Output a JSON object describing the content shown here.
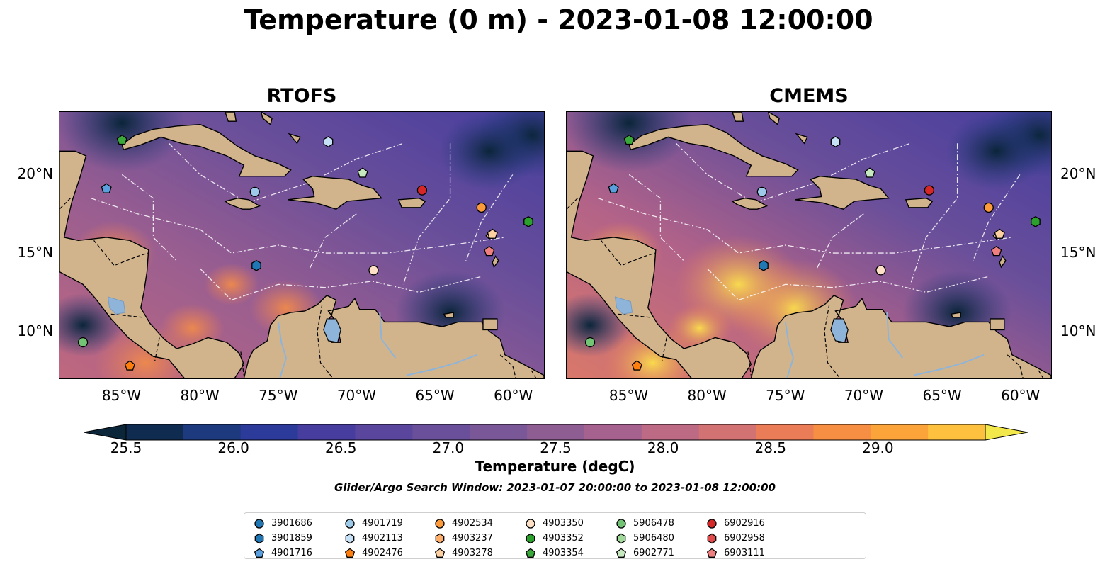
{
  "figure": {
    "title": "Temperature (0 m) - 2023-01-08 12:00:00",
    "panels": [
      {
        "title": "RTOFS"
      },
      {
        "title": "CMEMS"
      }
    ],
    "lat_ticks": [
      "20°N",
      "15°N",
      "10°N"
    ],
    "lon_ticks": [
      "85°W",
      "80°W",
      "75°W",
      "70°W",
      "65°W",
      "60°W"
    ],
    "extent": {
      "lon": [
        -89,
        -58
      ],
      "lat": [
        7,
        24
      ]
    },
    "colorbar": {
      "label": "Temperature (degC)",
      "ticks": [
        "25.5",
        "26.0",
        "26.5",
        "27.0",
        "27.5",
        "28.0",
        "28.5",
        "29.0"
      ],
      "range": [
        25.5,
        29.25
      ],
      "step": 0.25,
      "extend": "both",
      "colors": [
        "#0b2539",
        "#0f2b4f",
        "#1d3a7e",
        "#2c3a9a",
        "#463d9e",
        "#5a479d",
        "#6a4f9a",
        "#7a5897",
        "#8e5e93",
        "#a5628f",
        "#bd6a85",
        "#d27273",
        "#ea7d58",
        "#f68f43",
        "#fba43a",
        "#fdc13f",
        "#f2e84c"
      ]
    },
    "search_window": "Glider/Argo Search Window: 2023-01-07 20:00:00 to 2023-01-08 12:00:00",
    "colors": {
      "land": "#d2b48c",
      "ocean_base": "#5a4a9a",
      "rivers": "#8fb4d9"
    }
  },
  "legend": [
    {
      "id": "3901686",
      "marker": "circle",
      "color": "#1f77b4"
    },
    {
      "id": "3901859",
      "marker": "hexagon",
      "color": "#1f77b4"
    },
    {
      "id": "4901716",
      "marker": "pentagon",
      "color": "#5aa0de"
    },
    {
      "id": "4901719",
      "marker": "circle",
      "color": "#9ecae9"
    },
    {
      "id": "4902113",
      "marker": "hexagon",
      "color": "#c6e0f5"
    },
    {
      "id": "4902476",
      "marker": "pentagon",
      "color": "#ff7f0e"
    },
    {
      "id": "4902534",
      "marker": "circle",
      "color": "#fd9a3a"
    },
    {
      "id": "4903237",
      "marker": "hexagon",
      "color": "#fdae6b"
    },
    {
      "id": "4903278",
      "marker": "pentagon",
      "color": "#fdd0a2"
    },
    {
      "id": "4903350",
      "marker": "circle",
      "color": "#fde0c5"
    },
    {
      "id": "4903352",
      "marker": "hexagon",
      "color": "#2ca02c"
    },
    {
      "id": "4903354",
      "marker": "pentagon",
      "color": "#3aa83a"
    },
    {
      "id": "5906478",
      "marker": "circle",
      "color": "#74c476"
    },
    {
      "id": "5906480",
      "marker": "hexagon",
      "color": "#a1d99b"
    },
    {
      "id": "6902771",
      "marker": "pentagon",
      "color": "#c7e9c0"
    },
    {
      "id": "6902916",
      "marker": "circle",
      "color": "#d62728"
    },
    {
      "id": "6902958",
      "marker": "hexagon",
      "color": "#e04a4a"
    },
    {
      "id": "6903111",
      "marker": "pentagon",
      "color": "#f08080"
    }
  ],
  "floats": [
    {
      "id": "5906478",
      "lon": -87.5,
      "lat": 9.3
    },
    {
      "id": "4902476",
      "lon": -84.5,
      "lat": 7.8
    },
    {
      "id": "4901716",
      "lon": -86.0,
      "lat": 19.1
    },
    {
      "id": "4903354",
      "lon": -85.0,
      "lat": 22.2
    },
    {
      "id": "4902113",
      "lon": -71.8,
      "lat": 22.1
    },
    {
      "id": "6902771",
      "lon": -69.6,
      "lat": 20.1
    },
    {
      "id": "4901719",
      "lon": -76.5,
      "lat": 18.9
    },
    {
      "id": "6902916",
      "lon": -65.8,
      "lat": 19.0
    },
    {
      "id": "4902534",
      "lon": -62.0,
      "lat": 17.9
    },
    {
      "id": "4903352",
      "lon": -59.0,
      "lat": 17.0
    },
    {
      "id": "4903278",
      "lon": -61.3,
      "lat": 16.2
    },
    {
      "id": "6903111",
      "lon": -61.5,
      "lat": 15.1
    },
    {
      "id": "3901859",
      "lon": -76.4,
      "lat": 14.2
    },
    {
      "id": "4903350",
      "lon": -68.9,
      "lat": 13.9
    }
  ]
}
